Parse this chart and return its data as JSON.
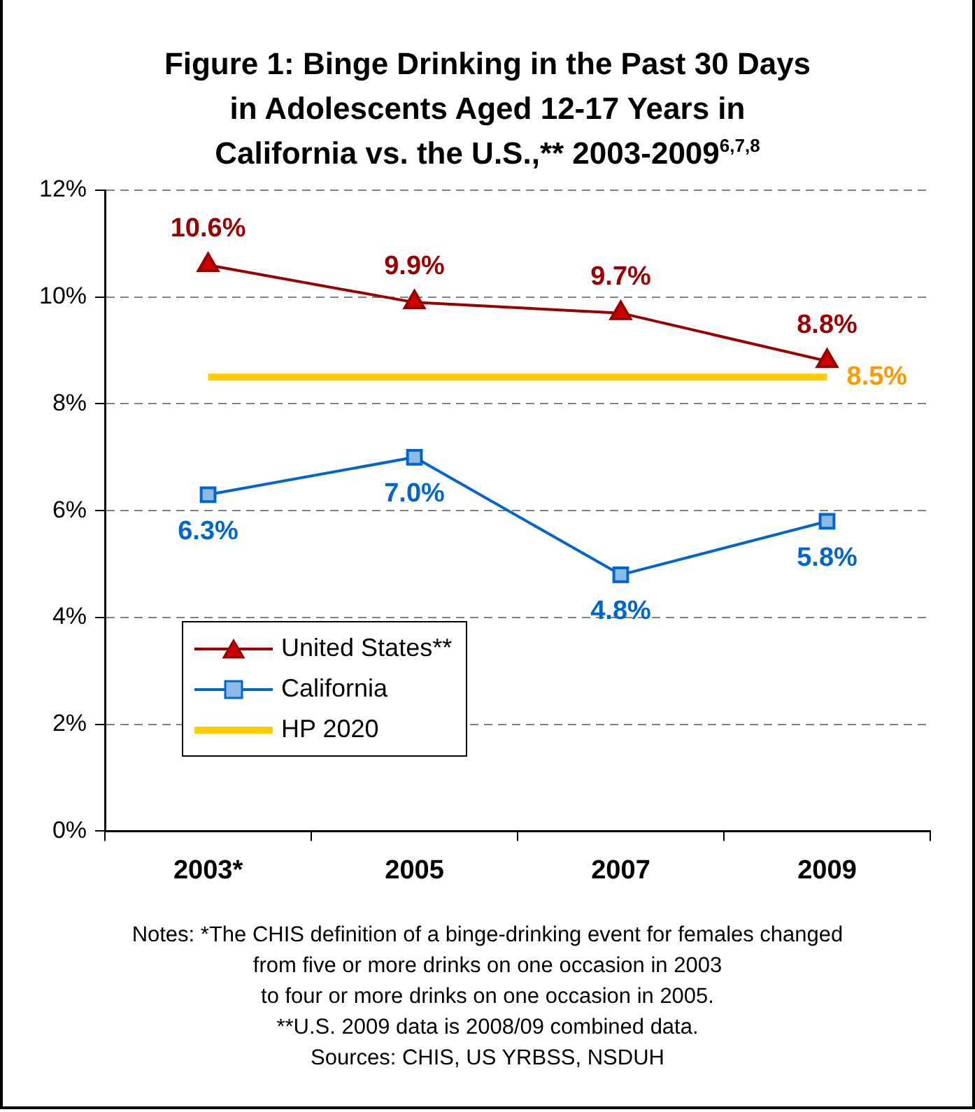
{
  "chart_data": {
    "type": "line",
    "title": "Figure 1:  Binge Drinking in the Past 30 Days\nin Adolescents Aged 12-17 Years in\nCalifornia vs. the U.S.,** 2003-2009$^{6,7,8}$",
    "categories": [
      "2003*",
      "2005",
      "2007",
      "2009"
    ],
    "series": [
      {
        "name": "United States**",
        "color": "#990000",
        "marker": "triangle",
        "values": [
          10.6,
          9.9,
          9.7,
          8.8
        ],
        "value_labels": [
          "10.6%",
          "9.9%",
          "9.7%",
          "8.8%"
        ]
      },
      {
        "name": "California",
        "color": "#0066cc",
        "marker": "square",
        "values": [
          6.3,
          7.0,
          4.8,
          5.8
        ],
        "value_labels": [
          "6.3%",
          "7.0%",
          "4.8%",
          "5.8%"
        ]
      },
      {
        "name": "HP 2020",
        "color": "#ffcc00",
        "marker": "none",
        "values": [
          8.5,
          8.5,
          8.5,
          8.5
        ],
        "value_labels": [
          null,
          null,
          null,
          "8.5%"
        ]
      }
    ],
    "ylim": [
      0,
      12
    ],
    "yticks": [
      {
        "value": 0,
        "label": "0%"
      },
      {
        "value": 2,
        "label": "2%"
      },
      {
        "value": 4,
        "label": "4%"
      },
      {
        "value": 6,
        "label": "6%"
      },
      {
        "value": 8,
        "label": "8%"
      },
      {
        "value": 10,
        "label": "10%"
      },
      {
        "value": 12,
        "label": "12%"
      }
    ],
    "grid": "y",
    "legend": "bottom left",
    "annotations": [
      "Notes:  *The CHIS definition of a binge-drinking event for females changed\nfrom five or more drinks on one occasion in 2003\nto four or more drinks on one occasion in 2005.\n**U.S. 2009 data is 2008/09 combined data.\nSources:  CHIS, US YRBSS, NSDUH"
    ]
  }
}
